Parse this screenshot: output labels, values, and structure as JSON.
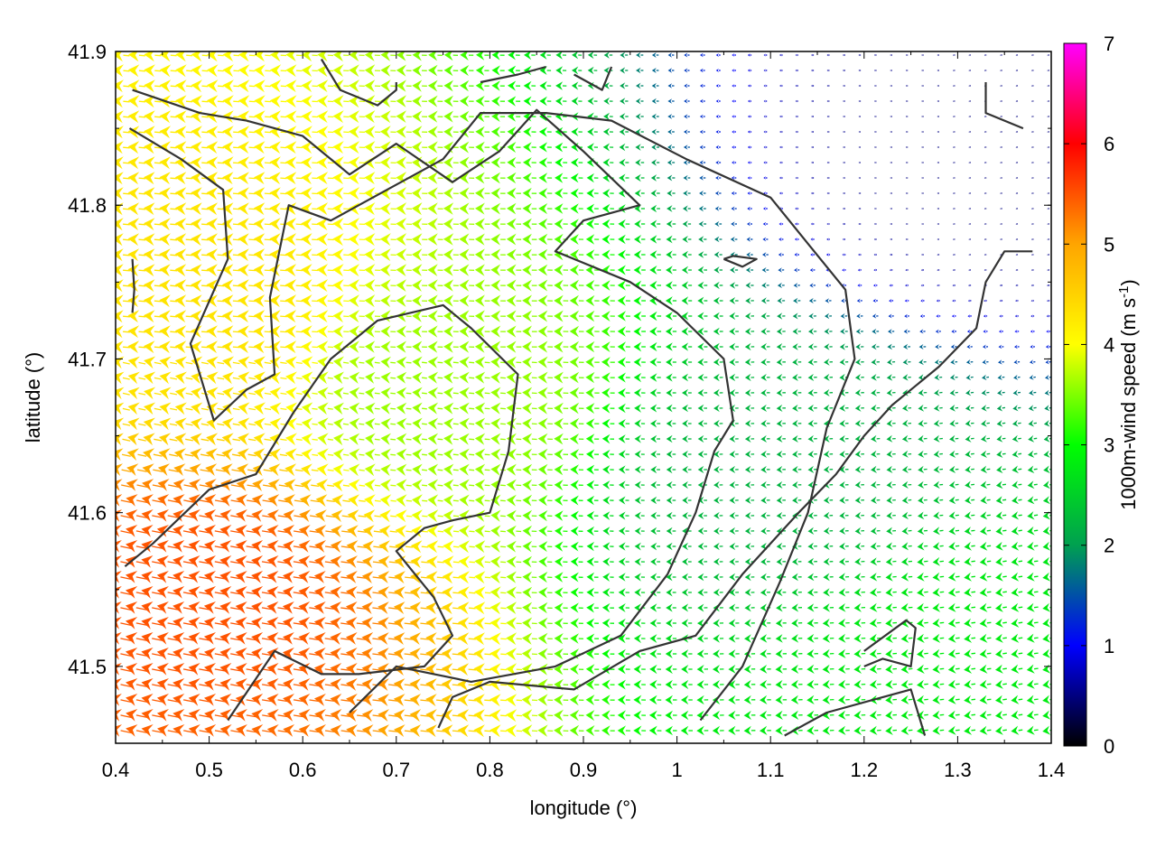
{
  "chart_data": {
    "type": "vector-field",
    "title": "",
    "xlabel": "longitude (°)",
    "ylabel": "latitude (°)",
    "colorbar_label_main": "1000m-wind speed (m s",
    "colorbar_label_exp": "-1",
    "colorbar_label_end": ")",
    "xlim": [
      0.4,
      1.4
    ],
    "ylim": [
      41.45,
      41.9
    ],
    "xticks": [
      "0.4",
      "0.5",
      "0.6",
      "0.7",
      "0.8",
      "0.9",
      "1",
      "1.1",
      "1.2",
      "1.3",
      "1.4"
    ],
    "xtick_values": [
      0.4,
      0.5,
      0.6,
      0.7,
      0.8,
      0.9,
      1.0,
      1.1,
      1.2,
      1.3,
      1.4
    ],
    "yticks": [
      "41.5",
      "41.6",
      "41.7",
      "41.8",
      "41.9"
    ],
    "ytick_values": [
      41.5,
      41.6,
      41.7,
      41.8,
      41.9
    ],
    "colorbar_range": [
      0,
      7
    ],
    "colorbar_ticks": [
      "0",
      "1",
      "2",
      "3",
      "4",
      "5",
      "6",
      "7"
    ],
    "colorbar_tick_values": [
      0,
      1,
      2,
      3,
      4,
      5,
      6,
      7
    ],
    "colormap": [
      "#000000",
      "#0000ff",
      "#00a050",
      "#00ff00",
      "#ffff00",
      "#ffa500",
      "#ff0000",
      "#ff00ff"
    ],
    "grid": false,
    "wind_direction": "westward (from east), with a slight northward component in the south-east",
    "speed_regions": [
      {
        "region": "south-west",
        "lon": [
          0.4,
          0.6
        ],
        "lat": [
          41.5,
          41.6
        ],
        "speed": 5.5
      },
      {
        "region": "west",
        "lon": [
          0.4,
          0.55
        ],
        "lat": [
          41.6,
          41.85
        ],
        "speed": 4.3
      },
      {
        "region": "centre",
        "lon": [
          0.6,
          0.9
        ],
        "lat": [
          41.55,
          41.8
        ],
        "speed": 3.6
      },
      {
        "region": "east-centre",
        "lon": [
          1.0,
          1.2
        ],
        "lat": [
          41.5,
          41.75
        ],
        "speed": 2.2
      },
      {
        "region": "north-east",
        "lon": [
          1.25,
          1.4
        ],
        "lat": [
          41.75,
          41.9
        ],
        "speed": 0.5
      },
      {
        "region": "south-east",
        "lon": [
          1.2,
          1.4
        ],
        "lat": [
          41.45,
          41.55
        ],
        "speed": 2.8
      }
    ],
    "contours": [
      {
        "name": "contour-1",
        "points": [
          [
            0.418,
            41.875
          ],
          [
            0.49,
            41.86
          ],
          [
            0.54,
            41.855
          ],
          [
            0.6,
            41.845
          ],
          [
            0.65,
            41.82
          ],
          [
            0.7,
            41.84
          ],
          [
            0.76,
            41.815
          ],
          [
            0.81,
            41.835
          ],
          [
            0.85,
            41.862
          ],
          [
            0.9,
            41.835
          ],
          [
            0.96,
            41.8
          ],
          [
            0.9,
            41.79
          ],
          [
            0.87,
            41.77
          ],
          [
            0.95,
            41.75
          ],
          [
            1.0,
            41.73
          ],
          [
            1.05,
            41.7
          ],
          [
            1.06,
            41.66
          ],
          [
            1.04,
            41.64
          ],
          [
            1.02,
            41.6
          ],
          [
            0.99,
            41.56
          ],
          [
            0.94,
            41.52
          ],
          [
            0.87,
            41.5
          ],
          [
            0.78,
            41.49
          ],
          [
            0.7,
            41.5
          ],
          [
            0.65,
            41.47
          ]
        ]
      },
      {
        "name": "contour-2",
        "points": [
          [
            0.415,
            41.85
          ],
          [
            0.47,
            41.83
          ],
          [
            0.515,
            41.81
          ],
          [
            0.52,
            41.765
          ],
          [
            0.48,
            41.71
          ],
          [
            0.505,
            41.66
          ],
          [
            0.54,
            41.68
          ],
          [
            0.57,
            41.69
          ],
          [
            0.565,
            41.74
          ],
          [
            0.585,
            41.8
          ],
          [
            0.63,
            41.79
          ],
          [
            0.69,
            41.81
          ],
          [
            0.75,
            41.83
          ],
          [
            0.79,
            41.86
          ],
          [
            0.86,
            41.86
          ],
          [
            0.93,
            41.855
          ],
          [
            1.01,
            41.83
          ],
          [
            1.1,
            41.805
          ],
          [
            1.14,
            41.775
          ],
          [
            1.18,
            41.745
          ],
          [
            1.19,
            41.7
          ],
          [
            1.16,
            41.655
          ],
          [
            1.14,
            41.6
          ],
          [
            1.11,
            41.555
          ],
          [
            1.07,
            41.5
          ],
          [
            1.025,
            41.465
          ]
        ]
      },
      {
        "name": "contour-3",
        "points": [
          [
            0.41,
            41.565
          ],
          [
            0.44,
            41.58
          ],
          [
            0.5,
            41.615
          ],
          [
            0.55,
            41.625
          ],
          [
            0.59,
            41.665
          ],
          [
            0.63,
            41.7
          ],
          [
            0.68,
            41.725
          ],
          [
            0.75,
            41.735
          ],
          [
            0.78,
            41.72
          ],
          [
            0.83,
            41.69
          ],
          [
            0.82,
            41.64
          ],
          [
            0.8,
            41.6
          ],
          [
            0.76,
            41.595
          ],
          [
            0.73,
            41.59
          ],
          [
            0.7,
            41.575
          ],
          [
            0.74,
            41.545
          ],
          [
            0.76,
            41.52
          ],
          [
            0.73,
            41.5
          ],
          [
            0.66,
            41.495
          ],
          [
            0.62,
            41.495
          ],
          [
            0.57,
            41.51
          ],
          [
            0.52,
            41.465
          ]
        ]
      },
      {
        "name": "contour-4",
        "points": [
          [
            0.745,
            41.46
          ],
          [
            0.76,
            41.48
          ],
          [
            0.8,
            41.49
          ],
          [
            0.89,
            41.485
          ],
          [
            0.96,
            41.51
          ],
          [
            1.02,
            41.52
          ],
          [
            1.07,
            41.56
          ],
          [
            1.13,
            41.6
          ],
          [
            1.17,
            41.625
          ],
          [
            1.2,
            41.65
          ],
          [
            1.23,
            41.67
          ],
          [
            1.28,
            41.695
          ],
          [
            1.32,
            41.72
          ],
          [
            1.33,
            41.75
          ],
          [
            1.35,
            41.77
          ],
          [
            1.38,
            41.77
          ]
        ]
      },
      {
        "name": "contour-5",
        "points": [
          [
            1.2,
            41.5
          ],
          [
            1.22,
            41.505
          ],
          [
            1.25,
            41.5
          ],
          [
            1.255,
            41.525
          ],
          [
            1.245,
            41.53
          ],
          [
            1.2,
            41.51
          ]
        ]
      },
      {
        "name": "contour-6",
        "points": [
          [
            1.115,
            41.455
          ],
          [
            1.16,
            41.47
          ],
          [
            1.22,
            41.48
          ],
          [
            1.25,
            41.485
          ],
          [
            1.265,
            41.455
          ]
        ]
      },
      {
        "name": "contour-7",
        "points": [
          [
            0.62,
            41.895
          ],
          [
            0.64,
            41.875
          ],
          [
            0.68,
            41.865
          ],
          [
            0.7,
            41.875
          ],
          [
            0.7,
            41.88
          ]
        ]
      },
      {
        "name": "contour-8",
        "points": [
          [
            0.79,
            41.88
          ],
          [
            0.83,
            41.885
          ],
          [
            0.86,
            41.89
          ]
        ]
      },
      {
        "name": "contour-9",
        "points": [
          [
            0.89,
            41.885
          ],
          [
            0.92,
            41.875
          ],
          [
            0.93,
            41.89
          ]
        ]
      },
      {
        "name": "contour-10",
        "points": [
          [
            1.33,
            41.88
          ],
          [
            1.33,
            41.86
          ],
          [
            1.37,
            41.85
          ]
        ]
      },
      {
        "name": "contour-11",
        "points": [
          [
            0.418,
            41.765
          ],
          [
            0.42,
            41.745
          ],
          [
            0.418,
            41.73
          ]
        ]
      },
      {
        "name": "contour-12",
        "points": [
          [
            1.05,
            41.765
          ],
          [
            1.07,
            41.76
          ],
          [
            1.085,
            41.765
          ],
          [
            1.06,
            41.767
          ],
          [
            1.05,
            41.765
          ]
        ]
      }
    ]
  }
}
